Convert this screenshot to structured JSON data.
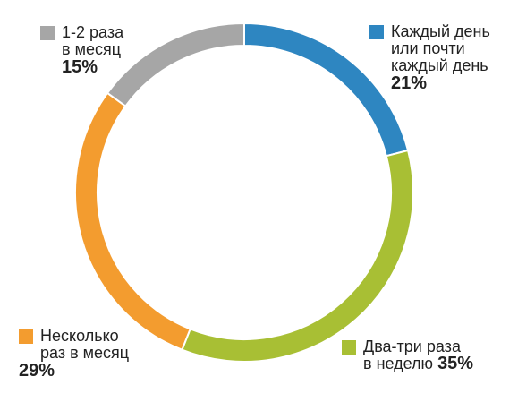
{
  "chart_data": {
    "type": "pie",
    "variant": "donut",
    "title": "",
    "slices": [
      {
        "lines": [
          "Каждый день",
          "или почти",
          "каждый день"
        ],
        "value": 21,
        "label": "21%",
        "color": "#2E86C1"
      },
      {
        "lines": [
          "Два-три раза",
          "в неделю"
        ],
        "value": 35,
        "label": "35%",
        "color": "#A8BF34"
      },
      {
        "lines": [
          "Несколько",
          "раз в месяц"
        ],
        "value": 29,
        "label": "29%",
        "color": "#F39C2F"
      },
      {
        "lines": [
          "1-2 раза",
          "в месяц"
        ],
        "value": 15,
        "label": "15%",
        "color": "#A6A6A6"
      }
    ]
  }
}
